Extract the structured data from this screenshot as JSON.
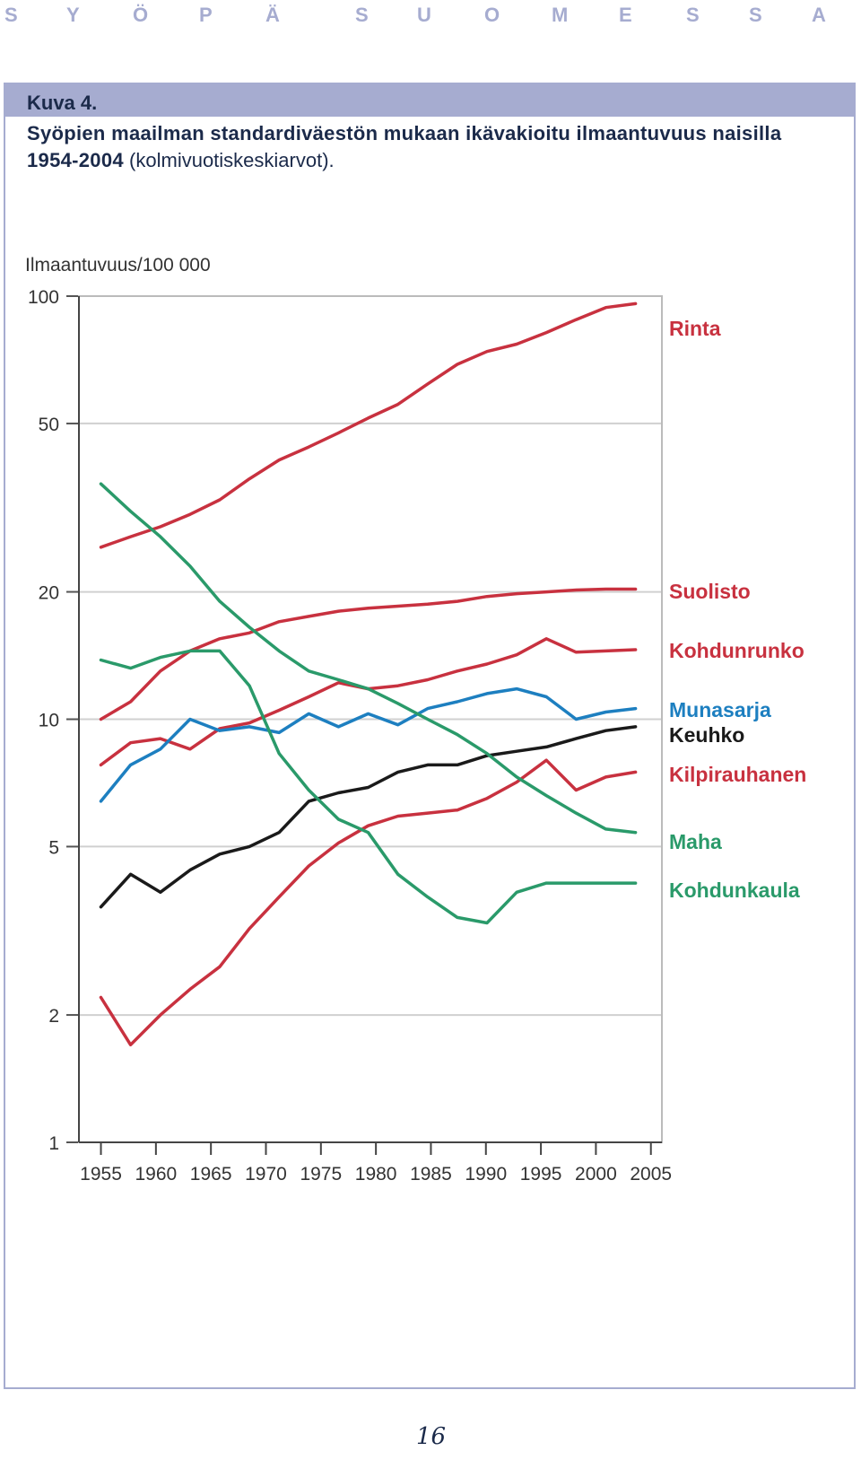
{
  "running_head": [
    "S",
    "Y",
    "Ö",
    "P",
    "Ä",
    "S",
    "U",
    "O",
    "M",
    "E",
    "S",
    "S",
    "A"
  ],
  "figure": {
    "number": "Kuva 4.",
    "caption_bold": "Syöpien maailman standardiväestön mukaan ikävakioitu ilmaantuvuus naisilla 1954-2004",
    "caption_normal": "(kolmivuotiskeskiarvot)."
  },
  "page_number": "16",
  "chart_data": {
    "type": "line",
    "ylabel": "Ilmaantuvuus/100 000",
    "xlabel": "",
    "y_scale": "log",
    "ylim": [
      1,
      100
    ],
    "xlim": [
      1953,
      2006
    ],
    "y_ticks": [
      {
        "value": 1,
        "label": "1"
      },
      {
        "value": 2,
        "label": "2"
      },
      {
        "value": 5,
        "label": "5"
      },
      {
        "value": 10,
        "label": "10"
      },
      {
        "value": 20,
        "label": "20"
      },
      {
        "value": 50,
        "label": "50"
      },
      {
        "value": 100,
        "label": "100"
      }
    ],
    "x_ticks": [
      1955,
      1960,
      1965,
      1970,
      1975,
      1980,
      1985,
      1990,
      1995,
      2000,
      2005
    ],
    "x": [
      1955,
      1957.7,
      1960.4,
      1963.1,
      1965.8,
      1968.5,
      1971.2,
      1973.9,
      1976.6,
      1979.3,
      1982,
      1984.7,
      1987.4,
      1990.1,
      1992.8,
      1995.5,
      1998.2,
      2000.9,
      2003.6
    ],
    "grid": true,
    "series": [
      {
        "name": "Rinta",
        "color": "#c8313f",
        "values": [
          25.5,
          27,
          28.5,
          30.5,
          33,
          37,
          41,
          44,
          47.5,
          51.5,
          55.5,
          62,
          69,
          74,
          77,
          82,
          88,
          94,
          96
        ]
      },
      {
        "name": "Suolisto",
        "color": "#c8313f",
        "values": [
          10,
          11,
          13,
          14.5,
          15.5,
          16,
          17,
          17.5,
          18,
          18.3,
          18.5,
          18.7,
          19,
          19.5,
          19.8,
          20,
          20.2,
          20.3,
          20.3
        ]
      },
      {
        "name": "Kohdunrunko",
        "color": "#c8313f",
        "values": [
          7.8,
          8.8,
          9,
          8.5,
          9.5,
          9.8,
          10.5,
          11.3,
          12.2,
          11.8,
          12,
          12.4,
          13,
          13.5,
          14.2,
          15.5,
          14.4,
          14.5,
          14.6
        ]
      },
      {
        "name": "Munasarja",
        "color": "#1d7fc0",
        "values": [
          6.4,
          7.8,
          8.5,
          10,
          9.4,
          9.6,
          9.3,
          10.3,
          9.6,
          10.3,
          9.7,
          10.6,
          11,
          11.5,
          11.8,
          11.3,
          10,
          10.4,
          10.6
        ]
      },
      {
        "name": "Keuhko",
        "color": "#1a1a1a",
        "values": [
          3.6,
          4.3,
          3.9,
          4.4,
          4.8,
          5,
          5.4,
          6.4,
          6.7,
          6.9,
          7.5,
          7.8,
          7.8,
          8.2,
          8.4,
          8.6,
          9,
          9.4,
          9.6
        ]
      },
      {
        "name": "Kilpirauhanen",
        "color": "#c8313f",
        "values": [
          2.2,
          1.7,
          2,
          2.3,
          2.6,
          3.2,
          3.8,
          4.5,
          5.1,
          5.6,
          5.9,
          6,
          6.1,
          6.5,
          7.1,
          8,
          6.8,
          7.3,
          7.5
        ]
      },
      {
        "name": "Maha",
        "color": "#2a9a6a",
        "values": [
          36,
          31,
          27,
          23,
          19,
          16.5,
          14.5,
          13,
          12.4,
          11.8,
          10.9,
          10,
          9.2,
          8.3,
          7.3,
          6.6,
          6,
          5.5,
          5.4
        ]
      },
      {
        "name": "Kohdunkaula",
        "color": "#2a9a6a",
        "values": [
          13.8,
          13.2,
          14,
          14.5,
          14.5,
          12,
          8.3,
          6.8,
          5.8,
          5.4,
          4.3,
          3.8,
          3.4,
          3.3,
          3.9,
          4.1,
          4.1,
          4.1,
          4.1
        ]
      }
    ],
    "legend_labels": [
      {
        "name": "Rinta",
        "color": "#c8313f"
      },
      {
        "name": "Suolisto",
        "color": "#c8313f"
      },
      {
        "name": "Kohdunrunko",
        "color": "#c8313f"
      },
      {
        "name": "Munasarja",
        "color": "#1d7fc0"
      },
      {
        "name": "Keuhko",
        "color": "#1a1a1a"
      },
      {
        "name": "Kilpirauhanen",
        "color": "#c8313f"
      },
      {
        "name": "Maha",
        "color": "#2a9a6a"
      },
      {
        "name": "Kohdunkaula",
        "color": "#2a9a6a"
      }
    ],
    "legend_placement": "right"
  }
}
